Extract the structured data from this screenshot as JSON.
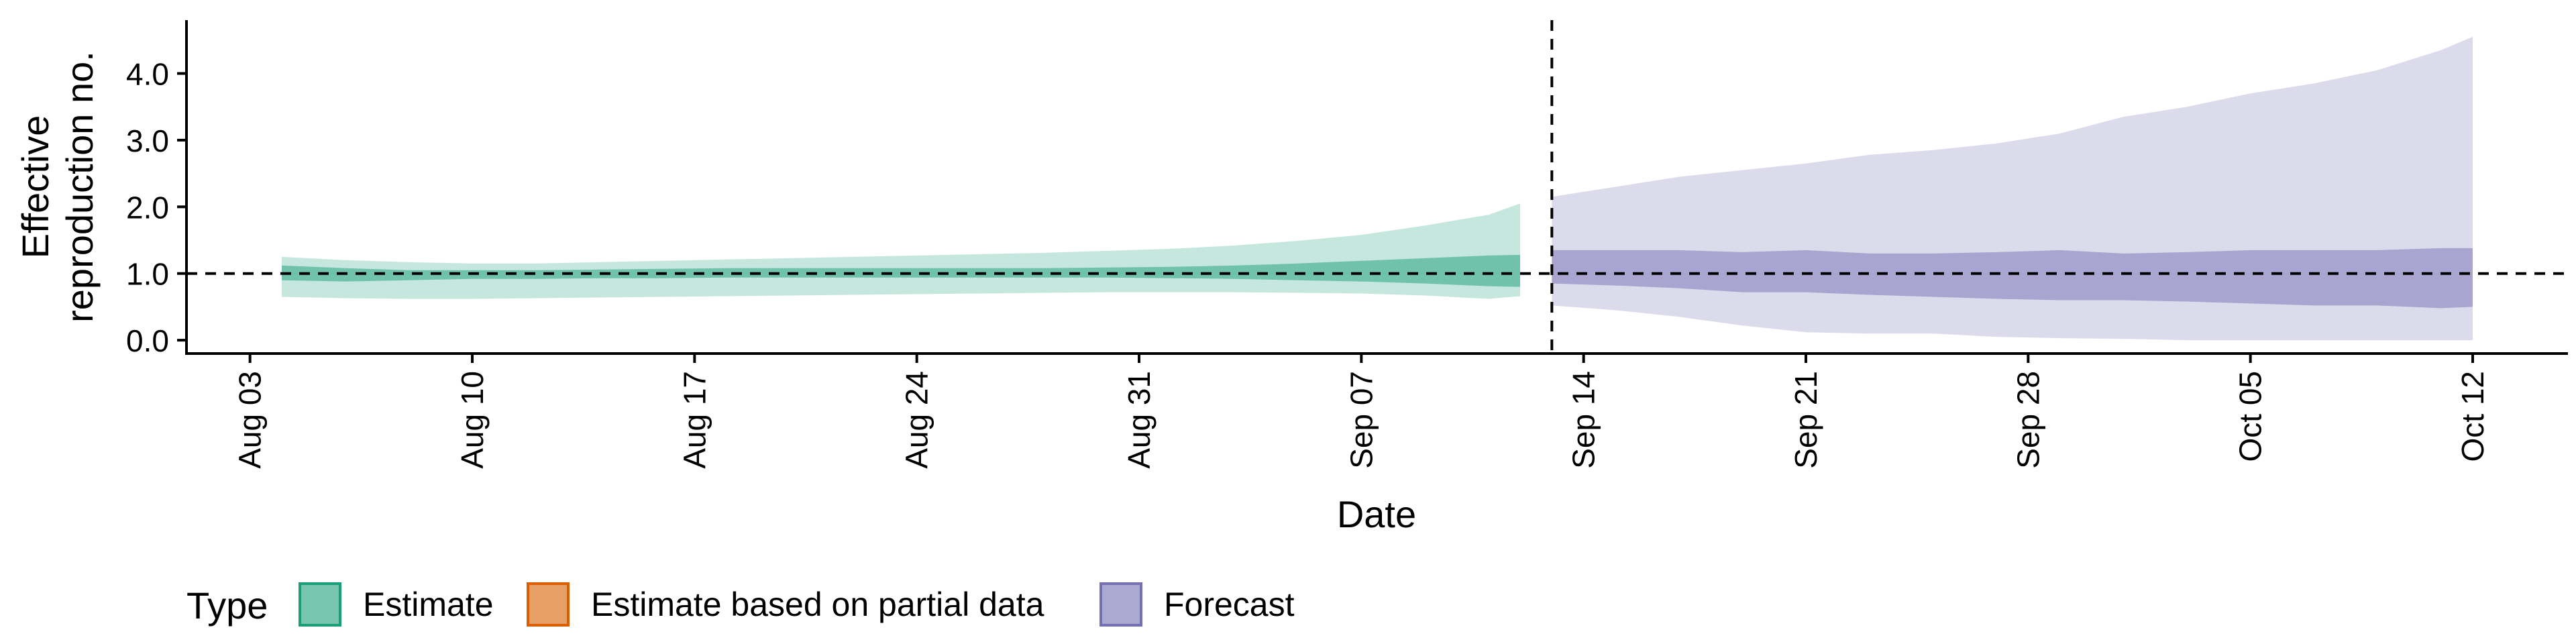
{
  "chart_data": {
    "type": "area",
    "xlabel": "Date",
    "ylabel_lines": [
      "Effective",
      "reproduction no."
    ],
    "ylim": [
      -0.2,
      4.8
    ],
    "yticks": [
      "0.0",
      "1.0",
      "2.0",
      "3.0",
      "4.0"
    ],
    "ytick_values": [
      0,
      1,
      2,
      3,
      4
    ],
    "x_range": [
      "2020-08-01",
      "2020-10-15"
    ],
    "xticks": [
      "Aug 03",
      "Aug 10",
      "Aug 17",
      "Aug 24",
      "Aug 31",
      "Sep 07",
      "Sep 14",
      "Sep 21",
      "Sep 28",
      "Oct 05",
      "Oct 12"
    ],
    "xtick_dates": [
      "2020-08-03",
      "2020-08-10",
      "2020-08-17",
      "2020-08-24",
      "2020-08-31",
      "2020-09-07",
      "2020-09-14",
      "2020-09-21",
      "2020-09-28",
      "2020-10-05",
      "2020-10-12"
    ],
    "reference_line_y": 1.0,
    "vertical_line_date": "2020-09-13",
    "grid": false,
    "legend": {
      "position": "bottom",
      "title": "Type",
      "items": [
        {
          "label": "Estimate",
          "color": "#1b9e77"
        },
        {
          "label": "Estimate based on partial data",
          "color": "#d95f02"
        },
        {
          "label": "Forecast",
          "color": "#7570b3"
        }
      ]
    },
    "series": [
      {
        "name": "Estimate",
        "color": "#1b9e77",
        "points": [
          [
            "2020-08-04",
            0.65,
            1.25,
            0.9,
            1.12
          ],
          [
            "2020-08-06",
            0.63,
            1.2,
            0.88,
            1.08
          ],
          [
            "2020-08-08",
            0.62,
            1.17,
            0.9,
            1.05
          ],
          [
            "2020-08-10",
            0.62,
            1.15,
            0.92,
            1.05
          ],
          [
            "2020-08-12",
            0.63,
            1.15,
            0.92,
            1.05
          ],
          [
            "2020-08-14",
            0.64,
            1.17,
            0.93,
            1.06
          ],
          [
            "2020-08-16",
            0.65,
            1.19,
            0.93,
            1.07
          ],
          [
            "2020-08-18",
            0.66,
            1.21,
            0.94,
            1.08
          ],
          [
            "2020-08-20",
            0.67,
            1.23,
            0.94,
            1.08
          ],
          [
            "2020-08-22",
            0.68,
            1.25,
            0.94,
            1.08
          ],
          [
            "2020-08-24",
            0.69,
            1.27,
            0.94,
            1.08
          ],
          [
            "2020-08-26",
            0.7,
            1.29,
            0.94,
            1.08
          ],
          [
            "2020-08-28",
            0.71,
            1.31,
            0.94,
            1.08
          ],
          [
            "2020-08-30",
            0.72,
            1.34,
            0.94,
            1.09
          ],
          [
            "2020-09-01",
            0.72,
            1.37,
            0.93,
            1.1
          ],
          [
            "2020-09-03",
            0.72,
            1.42,
            0.92,
            1.12
          ],
          [
            "2020-09-05",
            0.71,
            1.49,
            0.9,
            1.15
          ],
          [
            "2020-09-07",
            0.7,
            1.58,
            0.88,
            1.19
          ],
          [
            "2020-09-09",
            0.67,
            1.72,
            0.85,
            1.23
          ],
          [
            "2020-09-11",
            0.62,
            1.88,
            0.81,
            1.27
          ],
          [
            "2020-09-12",
            0.66,
            2.05,
            0.8,
            1.28
          ]
        ]
      },
      {
        "name": "Forecast",
        "color": "#7570b3",
        "points": [
          [
            "2020-09-13",
            0.52,
            2.15,
            0.85,
            1.35
          ],
          [
            "2020-09-15",
            0.45,
            2.3,
            0.82,
            1.35
          ],
          [
            "2020-09-17",
            0.35,
            2.45,
            0.78,
            1.35
          ],
          [
            "2020-09-19",
            0.22,
            2.55,
            0.72,
            1.32
          ],
          [
            "2020-09-21",
            0.12,
            2.65,
            0.72,
            1.35
          ],
          [
            "2020-09-23",
            0.1,
            2.78,
            0.68,
            1.3
          ],
          [
            "2020-09-25",
            0.1,
            2.85,
            0.65,
            1.3
          ],
          [
            "2020-09-27",
            0.05,
            2.95,
            0.62,
            1.32
          ],
          [
            "2020-09-29",
            0.03,
            3.1,
            0.6,
            1.35
          ],
          [
            "2020-10-01",
            0.02,
            3.35,
            0.6,
            1.3
          ],
          [
            "2020-10-03",
            0.0,
            3.5,
            0.58,
            1.32
          ],
          [
            "2020-10-05",
            0.0,
            3.7,
            0.55,
            1.35
          ],
          [
            "2020-10-07",
            0.0,
            3.85,
            0.52,
            1.35
          ],
          [
            "2020-10-09",
            0.0,
            4.05,
            0.52,
            1.35
          ],
          [
            "2020-10-11",
            0.0,
            4.35,
            0.48,
            1.38
          ],
          [
            "2020-10-12",
            0.0,
            4.55,
            0.5,
            1.38
          ]
        ]
      }
    ]
  }
}
